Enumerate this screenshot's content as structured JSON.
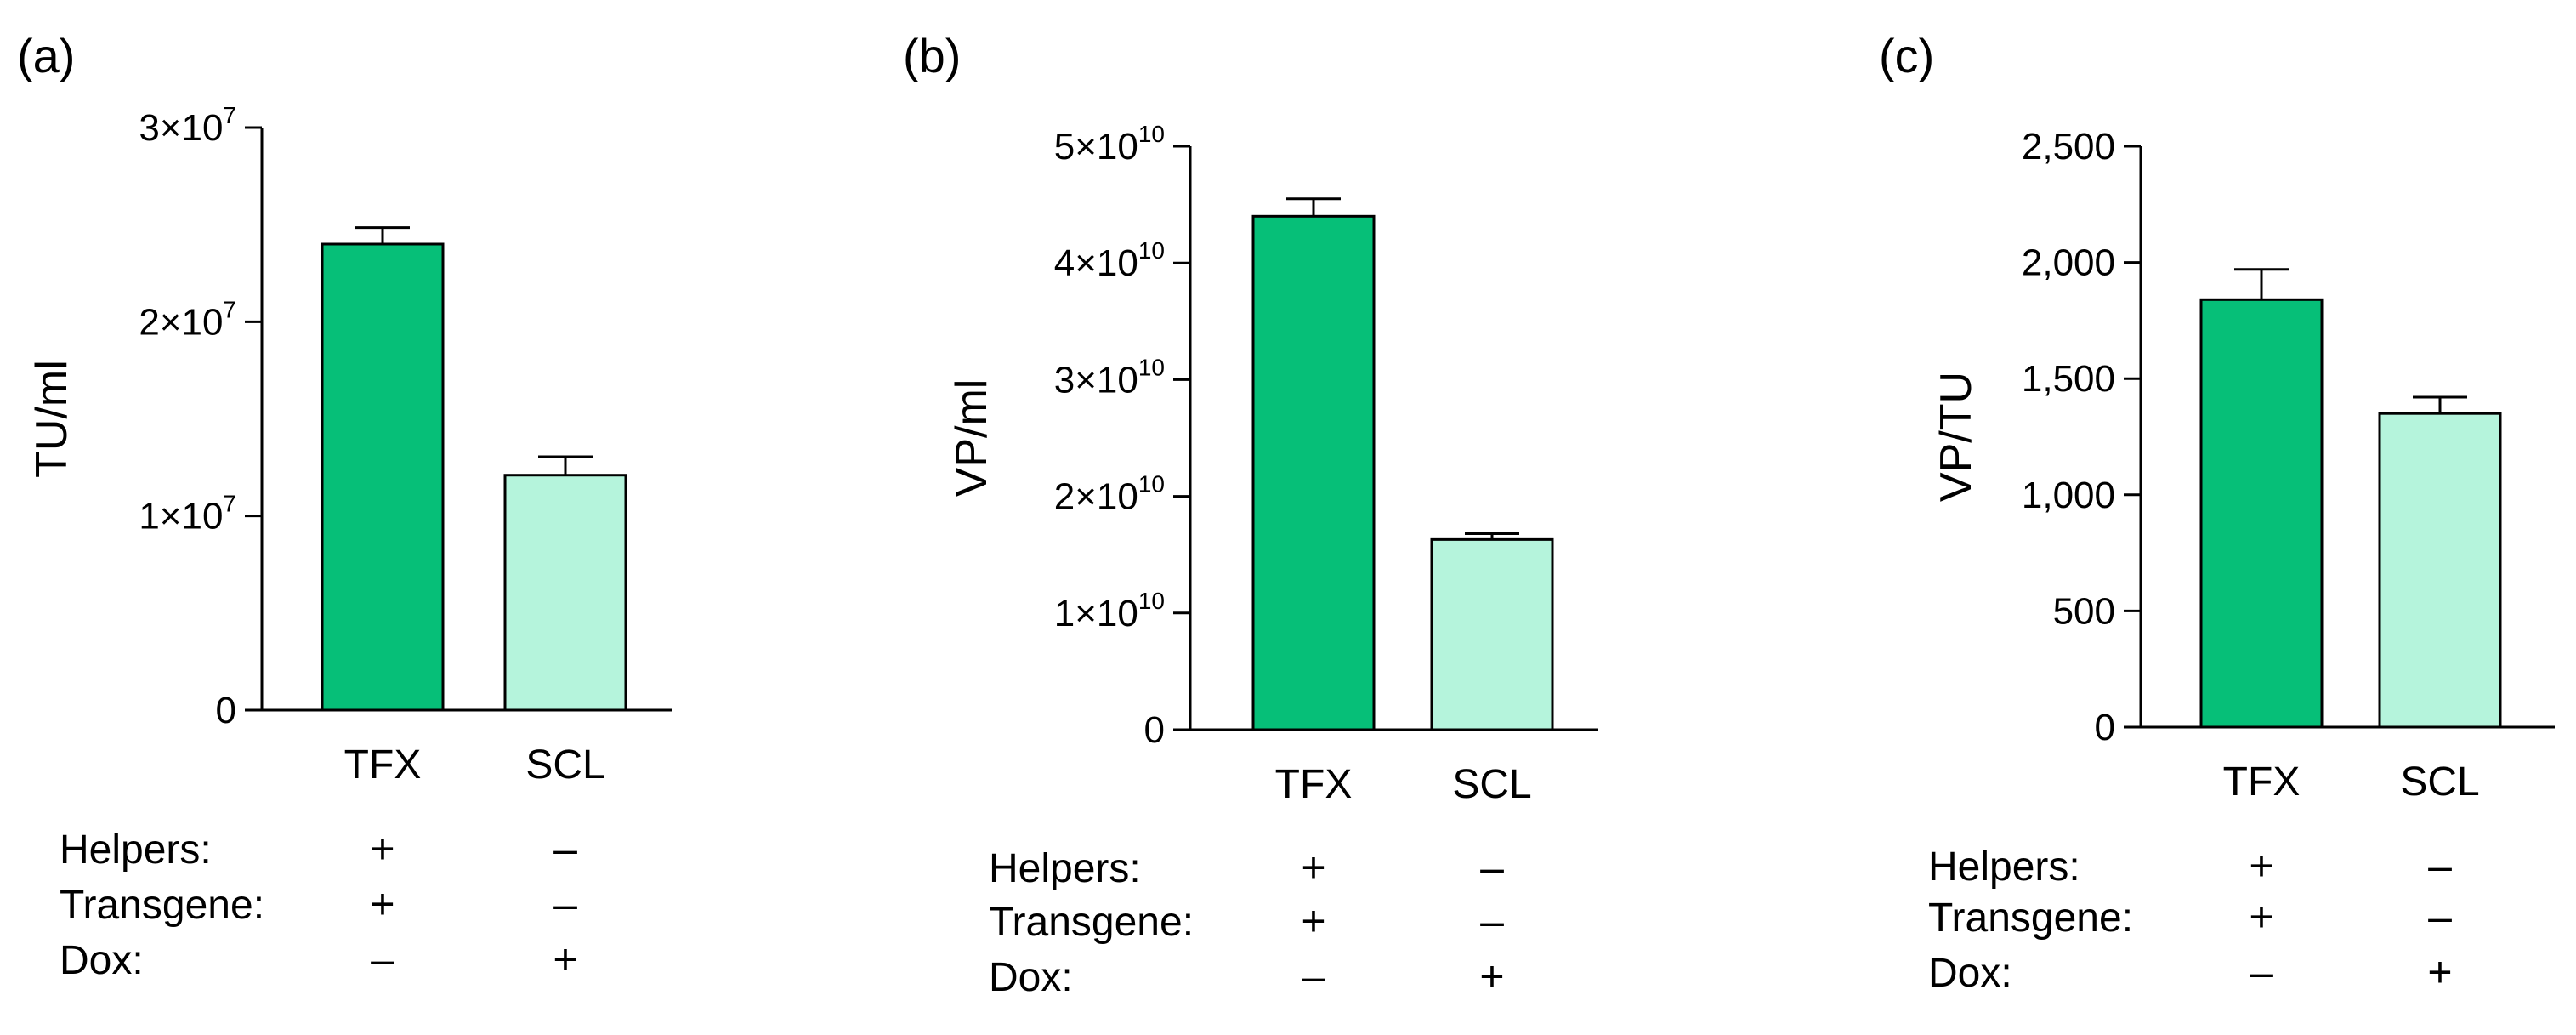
{
  "chart_data": [
    {
      "type": "bar",
      "panel": "(a)",
      "ylabel": "TU/ml",
      "ylim": [
        0,
        30000000
      ],
      "ticks": [
        {
          "value": 0,
          "mantissa": "0",
          "exp": ""
        },
        {
          "value": 10000000,
          "mantissa": "1×10",
          "exp": "7"
        },
        {
          "value": 20000000,
          "mantissa": "2×10",
          "exp": "7"
        },
        {
          "value": 30000000,
          "mantissa": "3×10",
          "exp": "7"
        }
      ],
      "categories": [
        "TFX",
        "SCL"
      ],
      "values": [
        24000000,
        12100000
      ],
      "errors": [
        850000,
        950000
      ],
      "colors": [
        "#06BF78",
        "#B5F4DC"
      ],
      "conditions": [
        {
          "label": "Helpers:",
          "signs": [
            "+",
            "–"
          ]
        },
        {
          "label": "Transgene:",
          "signs": [
            "+",
            "–"
          ]
        },
        {
          "label": "Dox:",
          "signs": [
            "–",
            "+"
          ]
        }
      ]
    },
    {
      "type": "bar",
      "panel": "(b)",
      "ylabel": "VP/ml",
      "ylim": [
        0,
        50000000000
      ],
      "ticks": [
        {
          "value": 0,
          "mantissa": "0",
          "exp": ""
        },
        {
          "value": 10000000000,
          "mantissa": "1×10",
          "exp": "10"
        },
        {
          "value": 20000000000,
          "mantissa": "2×10",
          "exp": "10"
        },
        {
          "value": 30000000000,
          "mantissa": "3×10",
          "exp": "10"
        },
        {
          "value": 40000000000,
          "mantissa": "4×10",
          "exp": "10"
        },
        {
          "value": 50000000000,
          "mantissa": "5×10",
          "exp": "10"
        }
      ],
      "categories": [
        "TFX",
        "SCL"
      ],
      "values": [
        44000000000,
        16300000000
      ],
      "errors": [
        1500000000,
        500000000
      ],
      "colors": [
        "#06BF78",
        "#B5F4DC"
      ],
      "conditions": [
        {
          "label": "Helpers:",
          "signs": [
            "+",
            "–"
          ]
        },
        {
          "label": "Transgene:",
          "signs": [
            "+",
            "–"
          ]
        },
        {
          "label": "Dox:",
          "signs": [
            "–",
            "+"
          ]
        }
      ]
    },
    {
      "type": "bar",
      "panel": "(c)",
      "ylabel": "VP/TU",
      "ylim": [
        0,
        2500
      ],
      "ticks": [
        {
          "value": 0,
          "mantissa": "0",
          "exp": ""
        },
        {
          "value": 500,
          "mantissa": "500",
          "exp": ""
        },
        {
          "value": 1000,
          "mantissa": "1,000",
          "exp": ""
        },
        {
          "value": 1500,
          "mantissa": "1,500",
          "exp": ""
        },
        {
          "value": 2000,
          "mantissa": "2,000",
          "exp": ""
        },
        {
          "value": 2500,
          "mantissa": "2,500",
          "exp": ""
        }
      ],
      "categories": [
        "TFX",
        "SCL"
      ],
      "values": [
        1840,
        1350
      ],
      "errors": [
        130,
        70
      ],
      "colors": [
        "#06BF78",
        "#B5F4DC"
      ],
      "conditions": [
        {
          "label": "Helpers:",
          "signs": [
            "+",
            "–"
          ]
        },
        {
          "label": "Transgene:",
          "signs": [
            "+",
            "–"
          ]
        },
        {
          "label": "Dox:",
          "signs": [
            "–",
            "+"
          ]
        }
      ]
    }
  ]
}
